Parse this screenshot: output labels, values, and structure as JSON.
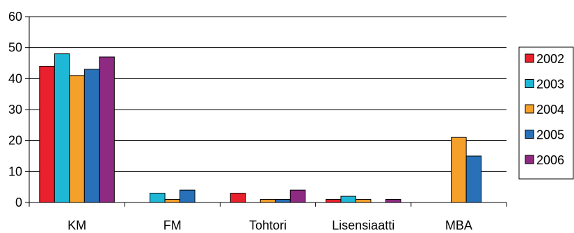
{
  "chart_data": {
    "type": "bar",
    "categories": [
      "KM",
      "FM",
      "Tohtori",
      "Lisensiaatti",
      "MBA"
    ],
    "series": [
      {
        "name": "2002",
        "color": "#e8212d",
        "values": [
          44,
          0,
          3,
          1,
          0
        ]
      },
      {
        "name": "2003",
        "color": "#1eb8d6",
        "values": [
          48,
          3,
          0,
          2,
          0
        ]
      },
      {
        "name": "2004",
        "color": "#f5a02a",
        "values": [
          41,
          1,
          1,
          1,
          21
        ]
      },
      {
        "name": "2005",
        "color": "#2870b8",
        "values": [
          43,
          4,
          1,
          0,
          15
        ]
      },
      {
        "name": "2006",
        "color": "#8e2a82",
        "values": [
          47,
          0,
          4,
          1,
          0
        ]
      }
    ],
    "ylim": [
      0,
      60
    ],
    "yticks": [
      0,
      10,
      20,
      30,
      40,
      50,
      60
    ],
    "grid": true,
    "legend_position": "right"
  }
}
